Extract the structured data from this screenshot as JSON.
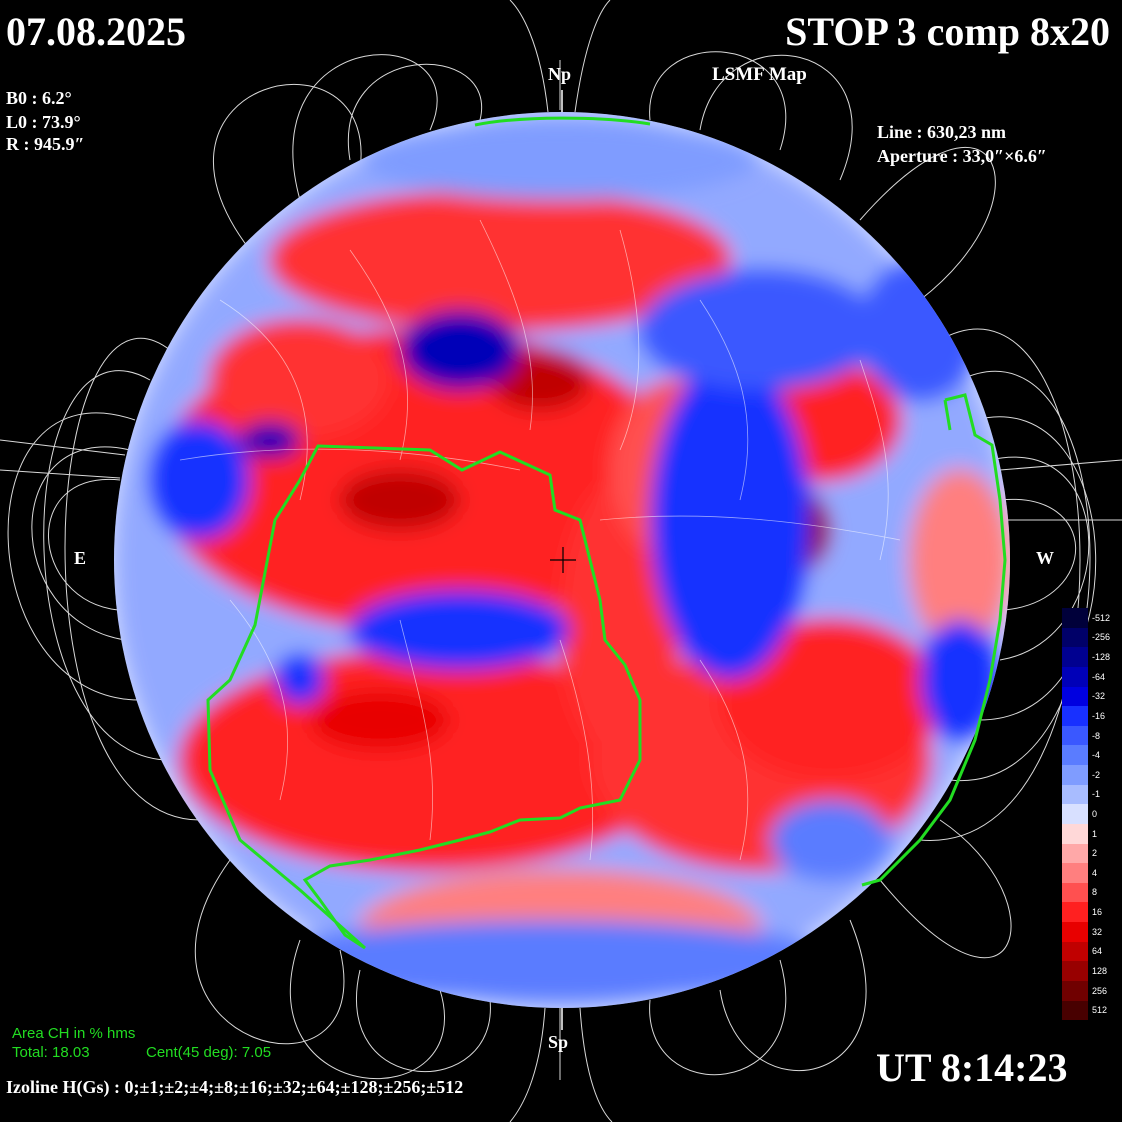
{
  "header": {
    "date": "07.08.2025",
    "title": "STOP 3 comp 8x20",
    "map_label": "LSMF Map"
  },
  "params": {
    "b0": "B0 : 6.2°",
    "l0": "L0 : 73.9°",
    "r": "R  : 945.9″",
    "line": "Line : 630,23 nm",
    "aperture": "Aperture : 33,0″×6.6″"
  },
  "markers": {
    "north": "Np",
    "south": "Sp",
    "east": "E",
    "west": "W"
  },
  "coronal_hole": {
    "area_label": "Area CH in % hms",
    "total": "Total: 18.03",
    "central": "Cent(45 deg): 7.05"
  },
  "footer": {
    "izoline": "Izoline H(Gs) : 0;±1;±2;±4;±8;±16;±32;±64;±128;±256;±512",
    "ut": "UT 8:14:23"
  },
  "colorbar": {
    "labels": [
      "-512",
      "-256",
      "-128",
      "-64",
      "-32",
      "-16",
      "-8",
      "-4",
      "-2",
      "-1",
      "0",
      "1",
      "2",
      "4",
      "8",
      "16",
      "32",
      "64",
      "128",
      "256",
      "512"
    ],
    "colors": [
      "#00003a",
      "#000068",
      "#000090",
      "#0000b8",
      "#0000e0",
      "#1830ff",
      "#3a58ff",
      "#5a7cff",
      "#7f9cff",
      "#a8bcff",
      "#d8e0ff",
      "#ffd8d8",
      "#ffa8a8",
      "#ff7f7f",
      "#ff5050",
      "#ff2020",
      "#e80000",
      "#c00000",
      "#980000",
      "#700000",
      "#480000"
    ]
  },
  "colors": {
    "positive": "#ff2020",
    "negative": "#1830ff",
    "coronal_hole_boundary": "#22dd22",
    "field_lines": "#ffffff"
  }
}
